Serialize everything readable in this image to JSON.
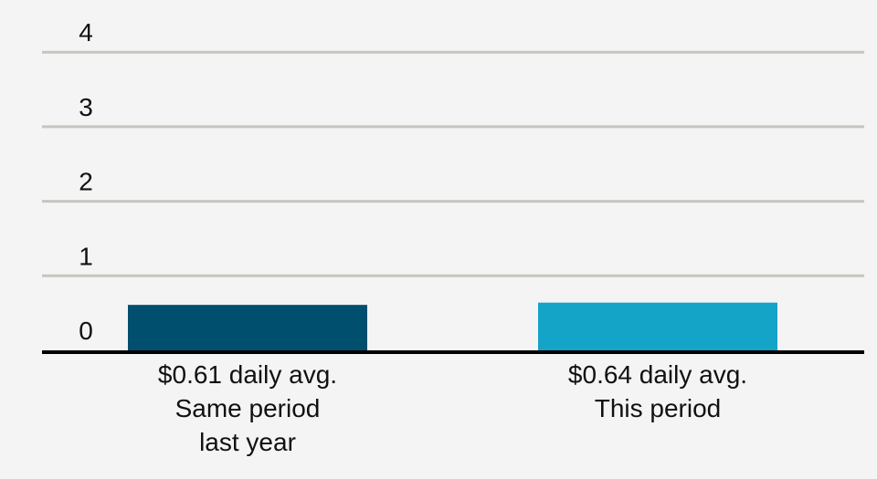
{
  "chart_data": {
    "type": "bar",
    "title": "",
    "xlabel": "",
    "ylabel": "",
    "ylim": [
      0,
      4
    ],
    "yticks": [
      0,
      1,
      2,
      3,
      4
    ],
    "grid": true,
    "categories": [
      {
        "lines": [
          "$0.61 daily avg.",
          "Same period",
          "last year"
        ]
      },
      {
        "lines": [
          "$0.64 daily avg.",
          "This period"
        ]
      }
    ],
    "values": [
      0.61,
      0.64
    ],
    "colors": [
      "#004f6e",
      "#13a4c8"
    ],
    "gridline_color": "#c8c4bf",
    "baseline_color": "#000000"
  }
}
